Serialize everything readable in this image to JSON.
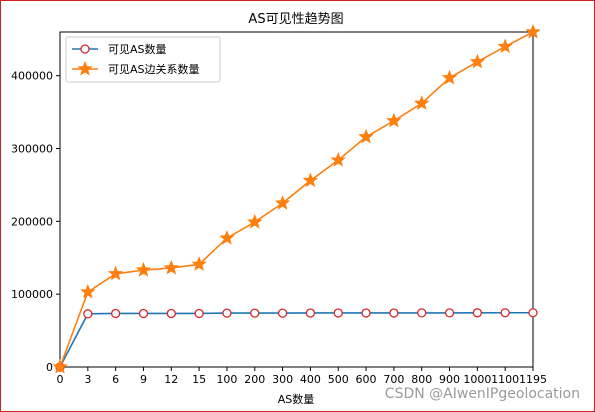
{
  "chart_data": {
    "type": "line",
    "title": "AS可见性趋势图",
    "xlabel": "AS数量",
    "ylabel": "",
    "categories": [
      "0",
      "3",
      "6",
      "9",
      "12",
      "15",
      "100",
      "200",
      "300",
      "400",
      "500",
      "600",
      "700",
      "800",
      "900",
      "1000",
      "1100",
      "1195"
    ],
    "ylim": [
      0,
      460000
    ],
    "yticks": [
      0,
      100000,
      200000,
      300000,
      400000
    ],
    "ytick_labels": [
      "0",
      "100000",
      "200000",
      "300000",
      "400000"
    ],
    "grid": false,
    "legend_position": "top-left",
    "series": [
      {
        "name": "可见AS数量",
        "color": "#1f77b4",
        "marker": "circle-open-red",
        "values": [
          0,
          73000,
          73500,
          73500,
          73500,
          73500,
          74000,
          74000,
          74000,
          74200,
          74200,
          74200,
          74200,
          74300,
          74300,
          74400,
          74500,
          74500
        ]
      },
      {
        "name": "可见AS边关系数量",
        "color": "#ff7f0e",
        "marker": "star",
        "values": [
          0,
          103000,
          128000,
          133000,
          136000,
          141000,
          177000,
          199000,
          225000,
          256000,
          284000,
          316000,
          338000,
          362000,
          397000,
          419000,
          440000,
          460000
        ]
      }
    ]
  },
  "watermark": "CSDN @AIwenIPgeolocation",
  "colors": {
    "frame": "#cc2222",
    "axis": "#000000"
  }
}
